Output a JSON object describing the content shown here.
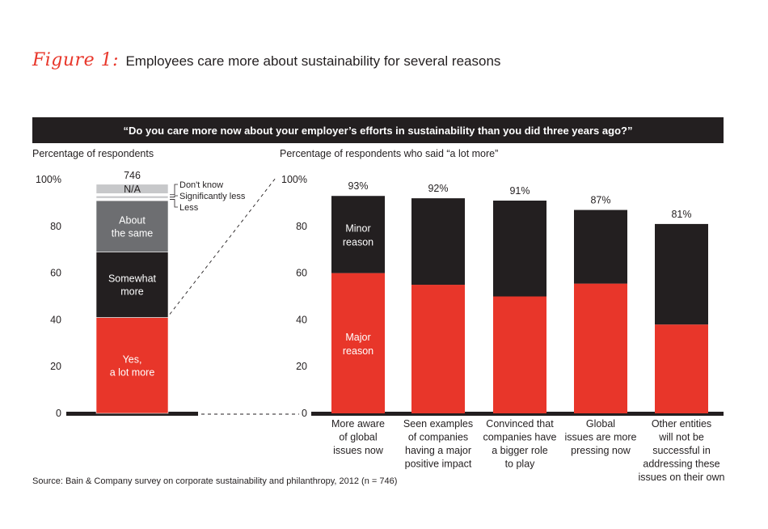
{
  "figure": {
    "label": "Figure 1:",
    "title": "Employees care more about sustainability for several reasons"
  },
  "banner": "“Do you care more now about your employer’s efforts in sustainability than you did three years ago?”",
  "left_panel_label": "Percentage of respondents",
  "right_panel_label": "Percentage of respondents who said “a lot more”",
  "source": "Source: Bain & Company survey on corporate sustainability and philanthropy, 2012 (n = 746)",
  "colors": {
    "red": "#e8362a",
    "black": "#231f20",
    "gray": "#6d6e71",
    "lightgray": "#c7c8ca",
    "white": "#ffffff"
  },
  "chart_data": [
    {
      "type": "bar",
      "stacked": true,
      "title": "Percentage of respondents",
      "ylabel": "Percentage of respondents",
      "ylim": [
        0,
        100
      ],
      "yticks": [
        "0",
        "20",
        "40",
        "60",
        "80",
        "100%"
      ],
      "total_label": "746",
      "series": [
        {
          "name": "Yes, a lot more",
          "label_lines": [
            "Yes,",
            "a lot more"
          ],
          "value": 41,
          "color": "#e8362a"
        },
        {
          "name": "Somewhat more",
          "label_lines": [
            "Somewhat",
            "more"
          ],
          "value": 28,
          "color": "#231f20"
        },
        {
          "name": "About the same",
          "label_lines": [
            "About",
            "the same"
          ],
          "value": 22,
          "color": "#6d6e71"
        },
        {
          "name": "Less",
          "label_lines": [],
          "value": 1,
          "color": "#ffffff",
          "callout": "Less"
        },
        {
          "name": "Significantly less",
          "label_lines": [],
          "value": 1,
          "color": "#c7c8ca",
          "callout": "Significantly less"
        },
        {
          "name": "Don't know",
          "label_lines": [],
          "value": 1,
          "color": "#ffffff",
          "callout": "Don't know"
        },
        {
          "name": "N/A",
          "label_lines": [
            "N/A"
          ],
          "value": 4,
          "color": "#c7c8ca"
        }
      ]
    },
    {
      "type": "bar",
      "stacked": true,
      "title": "Percentage of respondents who said “a lot more”",
      "ylim": [
        0,
        100
      ],
      "yticks": [
        "0",
        "20",
        "40",
        "60",
        "80",
        "100%"
      ],
      "categories": [
        [
          "More aware",
          "of global",
          "issues now"
        ],
        [
          "Seen examples",
          "of companies",
          "having a major",
          "positive impact"
        ],
        [
          "Convinced that",
          "companies have",
          "a bigger role",
          "to play"
        ],
        [
          "Global",
          "issues are more",
          "pressing now"
        ],
        [
          "Other entities",
          "will not be",
          "successful in",
          "addressing these",
          "issues on their own"
        ]
      ],
      "series": [
        {
          "name": "Major reason",
          "label_lines": [
            "Major",
            "reason"
          ],
          "color": "#e8362a",
          "values": [
            60,
            55,
            50,
            55.5,
            38
          ]
        },
        {
          "name": "Minor reason",
          "label_lines": [
            "Minor",
            "reason"
          ],
          "color": "#231f20",
          "values": [
            33,
            37,
            41,
            31.5,
            43
          ]
        }
      ],
      "totals": [
        "93%",
        "92%",
        "91%",
        "87%",
        "81%"
      ]
    }
  ]
}
